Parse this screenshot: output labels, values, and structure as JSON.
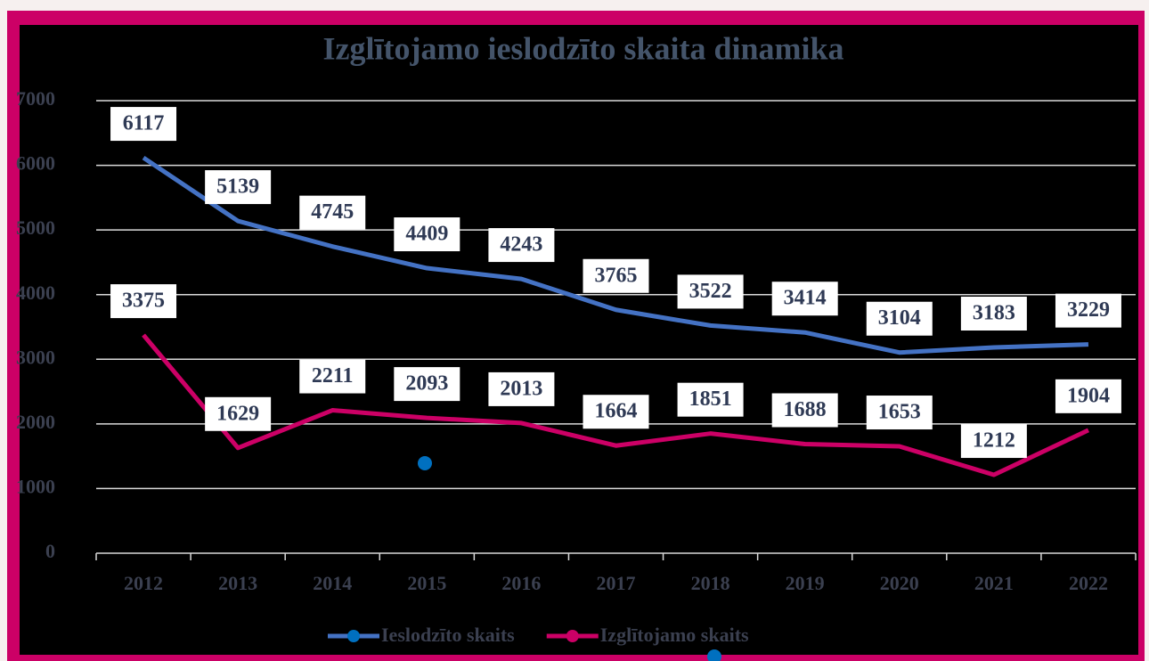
{
  "chart_data": {
    "type": "line",
    "title": "Izglītojamo ieslodzīto skaita dinamika",
    "categories": [
      "2012",
      "2013",
      "2014",
      "2015",
      "2016",
      "2017",
      "2018",
      "2019",
      "2020",
      "2021",
      "2022"
    ],
    "series": [
      {
        "name": "Ieslodzīto skaits",
        "color": "#4472c4",
        "values": [
          6117,
          5139,
          4745,
          4409,
          4243,
          3765,
          3522,
          3414,
          3104,
          3183,
          3229
        ]
      },
      {
        "name": "Izglītojamo skaits",
        "color": "#cc0066",
        "values": [
          3375,
          1629,
          2211,
          2093,
          2013,
          1664,
          1851,
          1688,
          1653,
          1212,
          1904
        ]
      }
    ],
    "ylim": [
      0,
      7000
    ],
    "yticks": [
      0,
      1000,
      2000,
      3000,
      4000,
      5000,
      6000,
      7000
    ],
    "grid": true,
    "legend": "bottom"
  }
}
